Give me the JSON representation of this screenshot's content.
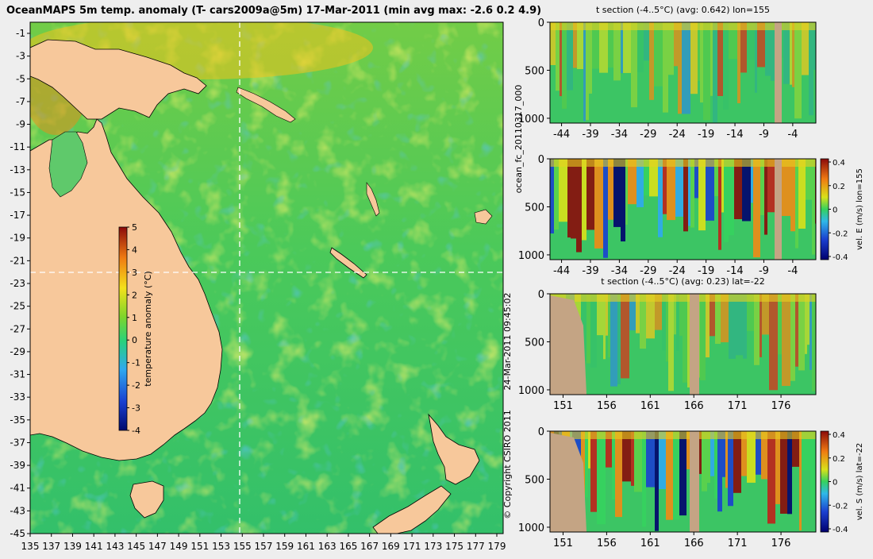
{
  "map": {
    "title": "OceanMAPS 5m temp. anomaly (T- cars2009a@5m) 17-Mar-2011 (min avg max: -2.6 0.2 4.9)",
    "lat_ticks": [
      "-1",
      "-3",
      "-5",
      "-7",
      "-9",
      "-11",
      "-13",
      "-15",
      "-17",
      "-19",
      "-21",
      "-23",
      "-25",
      "-27",
      "-29",
      "-31",
      "-33",
      "-35",
      "-37",
      "-39",
      "-41",
      "-43",
      "-45"
    ],
    "lon_ticks": [
      "135",
      "137",
      "139",
      "141",
      "143",
      "145",
      "147",
      "149",
      "151",
      "153",
      "155",
      "157",
      "159",
      "161",
      "163",
      "165",
      "167",
      "169",
      "171",
      "173",
      "175",
      "177",
      "179"
    ],
    "section_lon": 155,
    "section_lat": -22,
    "colorbar": {
      "label": "temperature anomaly (°C)",
      "ticks": [
        "5",
        "4",
        "3",
        "2",
        "1",
        "0",
        "-1",
        "-2",
        "-3",
        "-4"
      ],
      "range": [
        -4,
        5
      ]
    }
  },
  "panels": [
    {
      "title": "t section (-4..5°C) (avg: 0.642) lon=155",
      "x_ticks": [
        "-44",
        "-39",
        "-34",
        "-29",
        "-24",
        "-19",
        "-14",
        "-9",
        "-4"
      ],
      "x_range": [
        -46,
        0
      ],
      "y_ticks": [
        "0",
        "500",
        "1000"
      ],
      "y_range": [
        0,
        1050
      ],
      "variable": "temperature anomaly"
    },
    {
      "title": "",
      "x_ticks": [
        "-44",
        "-39",
        "-34",
        "-29",
        "-24",
        "-19",
        "-14",
        "-9",
        "-4"
      ],
      "x_range": [
        -46,
        0
      ],
      "y_ticks": [
        "0",
        "500",
        "1000"
      ],
      "y_range": [
        0,
        1050
      ],
      "variable": "vel. E (m/s)",
      "colorbar": {
        "label": "vel. E (m/s) lon=155",
        "ticks": [
          "0.4",
          "0.2",
          "0",
          "-0.2",
          "-0.4"
        ],
        "range": [
          -0.4,
          0.4
        ]
      }
    },
    {
      "title": "t section (-4..5°C) (avg: 0.23) lat=-22",
      "x_ticks": [
        "151",
        "156",
        "161",
        "166",
        "171",
        "176"
      ],
      "x_range": [
        149.5,
        180
      ],
      "y_ticks": [
        "0",
        "500",
        "1000"
      ],
      "y_range": [
        0,
        1050
      ],
      "variable": "temperature anomaly"
    },
    {
      "title": "",
      "x_ticks": [
        "151",
        "156",
        "161",
        "166",
        "171",
        "176"
      ],
      "x_range": [
        149.5,
        180
      ],
      "y_ticks": [
        "0",
        "500",
        "1000"
      ],
      "y_range": [
        0,
        1050
      ],
      "variable": "vel. S (m/s)",
      "colorbar": {
        "label": "vel. S (m/s) lat=-22",
        "ticks": [
          "0.4",
          "0.2",
          "0",
          "-0.2",
          "-0.4"
        ],
        "range": [
          -0.4,
          0.4
        ]
      }
    }
  ],
  "side_labels": {
    "run_id": "ocean_fc_20110317_000",
    "timestamp": "24-Mar-2011 09:45:02",
    "copyright": "© Copyright CSIRO 2011"
  },
  "chart_data": [
    {
      "type": "heatmap",
      "title": "OceanMAPS 5m temp. anomaly (T- cars2009a@5m) 17-Mar-2011 (min avg max: -2.6 0.2 4.9)",
      "x_range_lon": [
        135,
        180
      ],
      "y_range_lat": [
        -45,
        0
      ],
      "value_min": -2.6,
      "value_avg": 0.2,
      "value_max": 4.9,
      "colorbar_range": [
        -4,
        5
      ],
      "colorbar_label": "temperature anomaly (°C)"
    },
    {
      "type": "heatmap",
      "title": "t section (-4..5°C) (avg: 0.642) lon=155",
      "x_range": [
        -46,
        0
      ],
      "y_range": [
        0,
        1050
      ],
      "avg": 0.642
    },
    {
      "type": "heatmap",
      "variable": "vel. E (m/s) lon=155",
      "x_range": [
        -46,
        0
      ],
      "y_range": [
        0,
        1050
      ],
      "colorbar_range": [
        -0.4,
        0.4
      ]
    },
    {
      "type": "heatmap",
      "title": "t section (-4..5°C) (avg: 0.23) lat=-22",
      "x_range": [
        149.5,
        180
      ],
      "y_range": [
        0,
        1050
      ],
      "avg": 0.23
    },
    {
      "type": "heatmap",
      "variable": "vel. S (m/s) lat=-22",
      "x_range": [
        149.5,
        180
      ],
      "y_range": [
        0,
        1050
      ],
      "colorbar_range": [
        -0.4,
        0.4
      ]
    }
  ],
  "colors": {
    "land": "#f7c89b",
    "section_land": "#c4a484",
    "background": "#eeeeee"
  }
}
